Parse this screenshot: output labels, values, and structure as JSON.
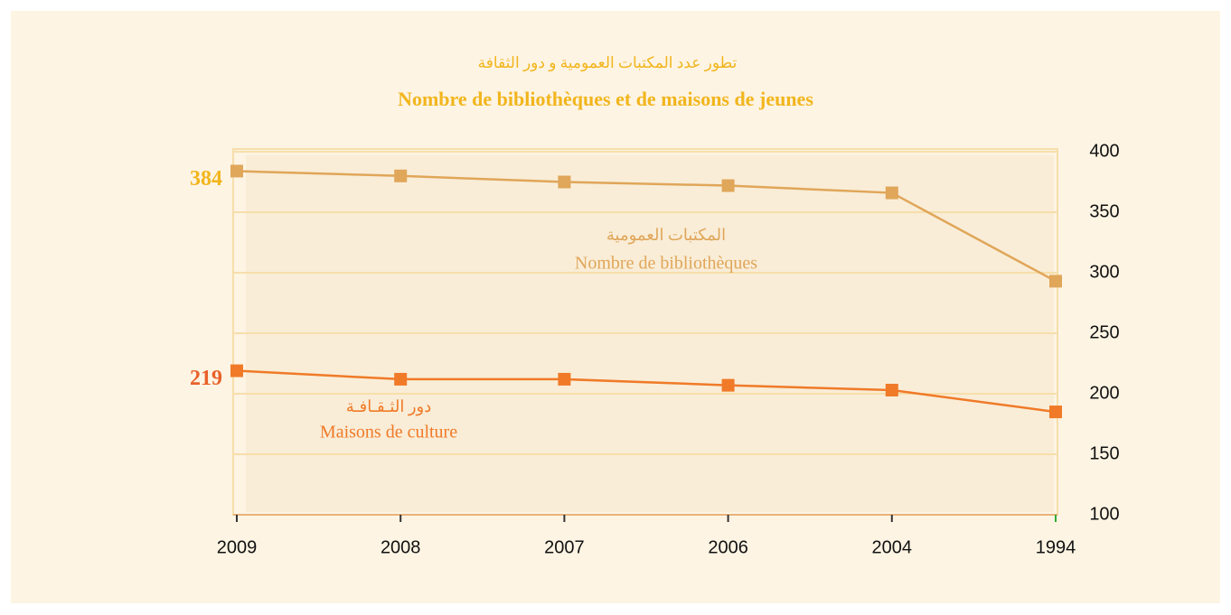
{
  "chart_data": {
    "type": "line",
    "title_ar": "تطور عدد المكتبات العمومية و دور الثقافة",
    "title": "Nombre de bibliothèques et de maisons de jeunes",
    "categories": [
      "2009",
      "2008",
      "2007",
      "2006",
      "2004",
      "1994"
    ],
    "series": [
      {
        "name": "Nombre de bibliothèques",
        "name_ar": "المكتبات العمومية",
        "color": "#e0a659",
        "label_color": "#f2b51c",
        "values": [
          384,
          380,
          375,
          372,
          366,
          293
        ]
      },
      {
        "name": "Maisons de culture",
        "name_ar": "دور الثـقـافـة",
        "color": "#f07a28",
        "label_color": "#e8622a",
        "values": [
          219,
          212,
          212,
          207,
          203,
          185
        ]
      }
    ],
    "ylim": [
      100,
      400
    ],
    "yticks": [
      100,
      150,
      200,
      250,
      300,
      350,
      400
    ],
    "grid": true
  }
}
